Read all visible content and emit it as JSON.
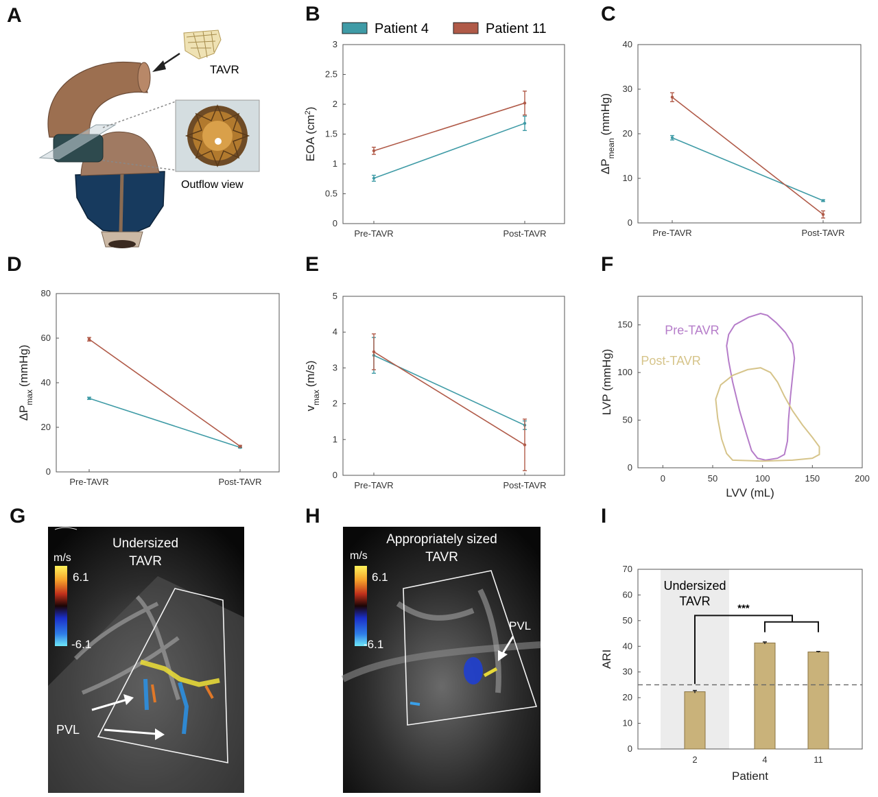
{
  "panels": {
    "A": {
      "letter": "A",
      "labels": {
        "tavr": "TAVR",
        "outflow": "Outflow view"
      }
    },
    "G": {
      "letter": "G",
      "title": [
        "Undersized",
        "TAVR"
      ],
      "scale_unit": "m/s",
      "scale_max": "6.1",
      "scale_min": "-6.1",
      "annotation": "PVL"
    },
    "H": {
      "letter": "H",
      "title": [
        "Appropriately sized",
        "TAVR"
      ],
      "scale_unit": "m/s",
      "scale_max": "6.1",
      "scale_min": "-6.1",
      "annotation": "PVL"
    }
  },
  "legend": {
    "position": "top",
    "items": [
      {
        "name": "Patient 4",
        "color": "#3f9ba6"
      },
      {
        "name": "Patient 11",
        "color": "#b05a48"
      }
    ]
  },
  "chart_data": [
    {
      "panel": "B",
      "type": "line",
      "categories": [
        "Pre-TAVR",
        "Post-TAVR"
      ],
      "ylabel": "EOA (cm²)",
      "ylim": [
        0,
        3
      ],
      "yticks": [
        "0",
        "0.5",
        "1",
        "1.5",
        "2",
        "2.5",
        "3"
      ],
      "series": [
        {
          "name": "Patient 4",
          "color": "#3f9ba6",
          "values": [
            0.76,
            1.68
          ],
          "err": [
            0.05,
            0.12
          ]
        },
        {
          "name": "Patient 11",
          "color": "#b05a48",
          "values": [
            1.22,
            2.02
          ],
          "err": [
            0.06,
            0.2
          ]
        }
      ]
    },
    {
      "panel": "C",
      "type": "line",
      "categories": [
        "Pre-TAVR",
        "Post-TAVR"
      ],
      "ylabel": "ΔP mean (mmHg)",
      "ylim": [
        0,
        40
      ],
      "yticks": [
        "0",
        "10",
        "20",
        "30",
        "40"
      ],
      "series": [
        {
          "name": "Patient 4",
          "color": "#3f9ba6",
          "values": [
            19.1,
            5.0
          ],
          "err": [
            0.5,
            0.2
          ]
        },
        {
          "name": "Patient 11",
          "color": "#b05a48",
          "values": [
            28.2,
            1.9
          ],
          "err": [
            1.0,
            0.8
          ]
        }
      ]
    },
    {
      "panel": "D",
      "type": "line",
      "categories": [
        "Pre-TAVR",
        "Post-TAVR"
      ],
      "ylabel": "ΔP max (mmHg)",
      "ylim": [
        0,
        80
      ],
      "yticks": [
        "0",
        "20",
        "40",
        "60",
        "80"
      ],
      "series": [
        {
          "name": "Patient 4",
          "color": "#3f9ba6",
          "values": [
            33.0,
            11.0
          ],
          "err": [
            0.5,
            0.3
          ]
        },
        {
          "name": "Patient 11",
          "color": "#b05a48",
          "values": [
            59.5,
            11.5
          ],
          "err": [
            0.8,
            0.4
          ]
        }
      ]
    },
    {
      "panel": "E",
      "type": "line",
      "categories": [
        "Pre-TAVR",
        "Post-TAVR"
      ],
      "ylabel": "v max (m/s)",
      "ylim": [
        0,
        5
      ],
      "yticks": [
        "0",
        "1",
        "2",
        "3",
        "4",
        "5"
      ],
      "series": [
        {
          "name": "Patient 4",
          "color": "#3f9ba6",
          "values": [
            3.35,
            1.4
          ],
          "err": [
            0.5,
            0.12
          ]
        },
        {
          "name": "Patient 11",
          "color": "#b05a48",
          "values": [
            3.45,
            0.85
          ],
          "err": [
            0.5,
            0.72
          ]
        }
      ]
    },
    {
      "panel": "F",
      "type": "line",
      "xlabel": "LVV (mL)",
      "ylabel": "LVP (mmHg)",
      "xlim": [
        -25,
        200
      ],
      "ylim": [
        0,
        180
      ],
      "xticks": [
        0,
        50,
        100,
        150,
        200
      ],
      "yticks": [
        0,
        50,
        100,
        150
      ],
      "series": [
        {
          "name": "Pre-TAVR",
          "color": "#b57cc9",
          "points": [
            [
              95,
              10
            ],
            [
              103,
              8
            ],
            [
              115,
              10
            ],
            [
              122,
              14
            ],
            [
              125,
              28
            ],
            [
              126,
              50
            ],
            [
              128,
              75
            ],
            [
              130,
              95
            ],
            [
              132,
              115
            ],
            [
              130,
              130
            ],
            [
              123,
              142
            ],
            [
              114,
              152
            ],
            [
              105,
              160
            ],
            [
              98,
              162
            ],
            [
              86,
              158
            ],
            [
              72,
              150
            ],
            [
              66,
              140
            ],
            [
              64,
              128
            ],
            [
              66,
              112
            ],
            [
              70,
              90
            ],
            [
              77,
              60
            ],
            [
              84,
              35
            ],
            [
              89,
              18
            ],
            [
              95,
              10
            ]
          ]
        },
        {
          "name": "Post-TAVR",
          "color": "#d6c48a",
          "points": [
            [
              70,
              8
            ],
            [
              100,
              7
            ],
            [
              130,
              8
            ],
            [
              150,
              10
            ],
            [
              157,
              14
            ],
            [
              157,
              22
            ],
            [
              150,
              32
            ],
            [
              140,
              45
            ],
            [
              130,
              60
            ],
            [
              122,
              75
            ],
            [
              115,
              90
            ],
            [
              108,
              100
            ],
            [
              98,
              105
            ],
            [
              85,
              103
            ],
            [
              70,
              97
            ],
            [
              58,
              87
            ],
            [
              53,
              72
            ],
            [
              55,
              52
            ],
            [
              59,
              30
            ],
            [
              64,
              15
            ],
            [
              70,
              8
            ]
          ]
        }
      ]
    },
    {
      "panel": "I",
      "type": "bar",
      "categories": [
        "2",
        "4",
        "11"
      ],
      "values": [
        22.3,
        41.3,
        37.8
      ],
      "err": [
        0.5,
        0.4,
        0.2
      ],
      "color": "#c9b27a",
      "xlabel": "Patient",
      "ylabel": "ARI",
      "ylim": [
        0,
        70
      ],
      "yticks": [
        "0",
        "10",
        "20",
        "30",
        "40",
        "50",
        "60",
        "70"
      ],
      "threshold": 25,
      "shaded_category": "2",
      "annotation": [
        "Undersized",
        "TAVR"
      ],
      "significance": "***"
    }
  ]
}
